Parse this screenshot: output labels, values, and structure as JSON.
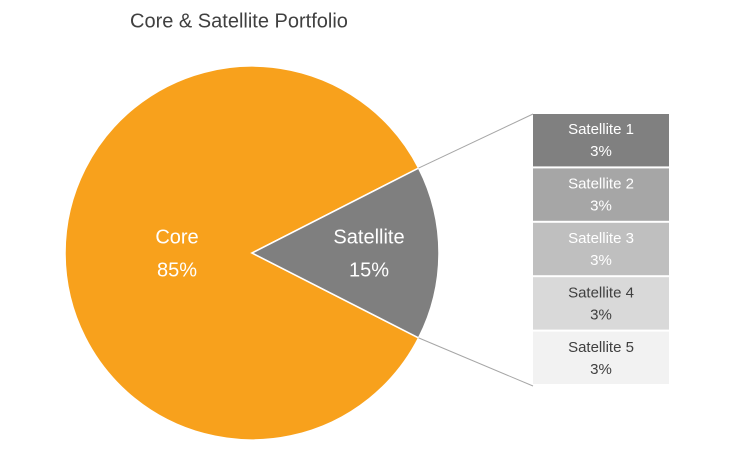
{
  "chart_data": {
    "type": "pie",
    "title": "Core & Satellite Portfolio",
    "categories": [
      "Core",
      "Satellite"
    ],
    "values": [
      85,
      15
    ],
    "value_labels": [
      "85%",
      "15%"
    ],
    "colors": [
      "#f8a11c",
      "#7f7f7f"
    ],
    "breakdown": {
      "type": "bar",
      "categories": [
        "Satellite 1",
        "Satellite 2",
        "Satellite 3",
        "Satellite 4",
        "Satellite 5"
      ],
      "values": [
        3,
        3,
        3,
        3,
        3
      ],
      "value_labels": [
        "3%",
        "3%",
        "3%",
        "3%",
        "3%"
      ],
      "colors": [
        "#808080",
        "#a6a6a6",
        "#bfbfbf",
        "#d9d9d9",
        "#f2f2f2"
      ]
    }
  }
}
